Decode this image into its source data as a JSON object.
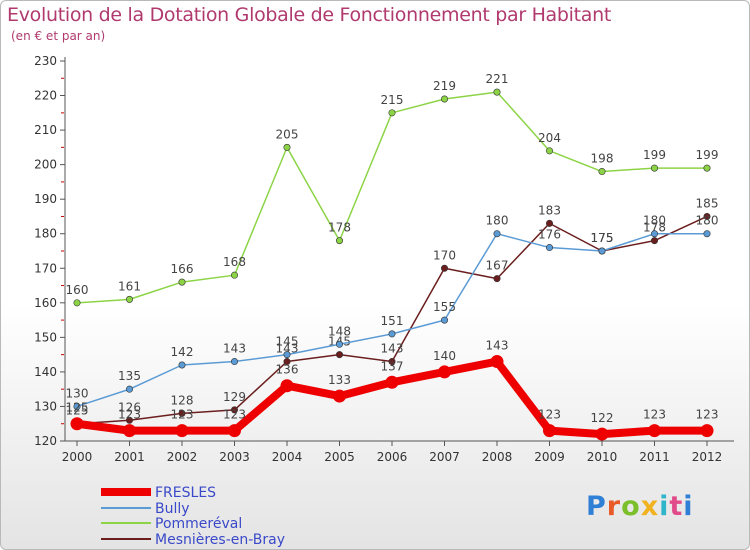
{
  "title": "Evolution de la Dotation Globale de Fonctionnement par Habitant",
  "subtitle": "(en € et par an)",
  "logo_text": "Proxiti",
  "chart_data": {
    "type": "line",
    "title": "Evolution de la Dotation Globale de Fonctionnement par Habitant",
    "subtitle": "(en € et par an)",
    "xlabel": "",
    "ylabel": "",
    "x": [
      "2000",
      "2001",
      "2002",
      "2003",
      "2004",
      "2005",
      "2006",
      "2007",
      "2008",
      "2009",
      "2010",
      "2011",
      "2012"
    ],
    "ylim": [
      120,
      230
    ],
    "yticks": [
      120,
      130,
      140,
      150,
      160,
      170,
      180,
      190,
      200,
      210,
      220,
      230
    ],
    "grid": false,
    "legend_position": "bottom-left",
    "series": [
      {
        "name": "FRESLES",
        "color": "#ee0000",
        "values": [
          125,
          123,
          123,
          123,
          136,
          133,
          137,
          140,
          143,
          123,
          122,
          123,
          123
        ]
      },
      {
        "name": "Bully",
        "color": "#5b9bd5",
        "values": [
          130,
          135,
          142,
          143,
          145,
          148,
          151,
          155,
          180,
          176,
          175,
          180,
          180
        ]
      },
      {
        "name": "Pommeréval",
        "color": "#8cd446",
        "values": [
          160,
          161,
          166,
          168,
          205,
          178,
          215,
          219,
          221,
          204,
          198,
          199,
          199
        ]
      },
      {
        "name": "Mesnières-en-Bray",
        "color": "#6b1e1e",
        "values": [
          125,
          126,
          128,
          129,
          143,
          145,
          143,
          170,
          167,
          183,
          175,
          178,
          185
        ]
      }
    ]
  }
}
